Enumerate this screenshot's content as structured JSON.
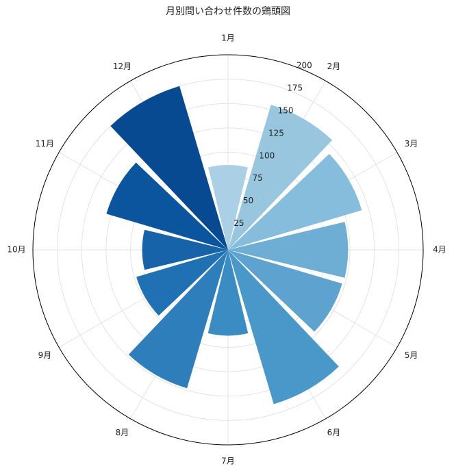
{
  "chart_data": {
    "type": "rose",
    "title": "月別問い合わせ件数の鶏頭図",
    "categories": [
      "1月",
      "2月",
      "3月",
      "4月",
      "5月",
      "6月",
      "7月",
      "8月",
      "9月",
      "10月",
      "11月",
      "12月"
    ],
    "values": [
      87,
      155,
      143,
      123,
      122,
      165,
      88,
      148,
      98,
      88,
      130,
      175
    ],
    "colors": [
      "#abd0e6",
      "#98c6df",
      "#86bcdc",
      "#6eaed5",
      "#5ea3d0",
      "#4a98c9",
      "#3a8cc2",
      "#2e7ebc",
      "#2070b4",
      "#1663aa",
      "#0b559f",
      "#084a91"
    ],
    "ylim": [
      0,
      200
    ],
    "yticks": [
      25,
      50,
      75,
      100,
      125,
      150,
      175,
      200
    ],
    "grid": true
  }
}
